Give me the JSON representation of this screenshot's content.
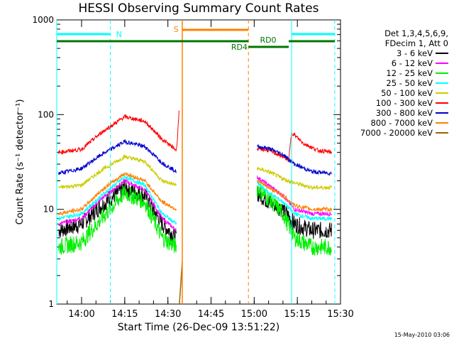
{
  "chart_data": {
    "type": "line",
    "title": "HESSI Observing Summary Count Rates",
    "xlabel": "Start Time (26-Dec-09 13:51:22)",
    "ylabel": "Count Rate (s⁻¹ detector⁻¹)",
    "yscale": "log",
    "ylim": [
      1,
      1000
    ],
    "xlim": [
      "13:51:22",
      "15:30"
    ],
    "x_ticks": [
      "14:00",
      "14:15",
      "14:30",
      "14:45",
      "15:00",
      "15:15",
      "15:30"
    ],
    "y_ticks": [
      "1",
      "10",
      "100",
      "1000"
    ],
    "legend_header": [
      "Det 1,3,4,5,6,9,",
      "FDecim 1, Att 0"
    ],
    "legend_position": "right, outside plot",
    "series": [
      {
        "name": "3 - 6 keV",
        "color": "#000000",
        "points": [
          [
            "13:52",
            6
          ],
          [
            "14:00",
            7
          ],
          [
            "14:07",
            11
          ],
          [
            "14:15",
            17
          ],
          [
            "14:22",
            14
          ],
          [
            "14:28",
            7
          ],
          [
            "14:33",
            5
          ],
          [
            "15:01",
            15
          ],
          [
            "15:05",
            12
          ],
          [
            "15:10",
            10
          ],
          [
            "15:14",
            7
          ],
          [
            "15:20",
            6
          ],
          [
            "15:27",
            6
          ]
        ]
      },
      {
        "name": "6 - 12 keV",
        "color": "#ff00ff",
        "points": [
          [
            "13:52",
            7
          ],
          [
            "14:00",
            8
          ],
          [
            "14:07",
            13
          ],
          [
            "14:15",
            20
          ],
          [
            "14:22",
            16
          ],
          [
            "14:28",
            8
          ],
          [
            "14:33",
            6
          ],
          [
            "15:01",
            22
          ],
          [
            "15:05",
            18
          ],
          [
            "15:10",
            14
          ],
          [
            "15:14",
            10
          ],
          [
            "15:20",
            9
          ],
          [
            "15:27",
            9
          ]
        ]
      },
      {
        "name": "12 - 25 keV",
        "color": "#00ee00",
        "points": [
          [
            "13:52",
            4
          ],
          [
            "14:00",
            4.5
          ],
          [
            "14:07",
            8
          ],
          [
            "14:15",
            15
          ],
          [
            "14:22",
            12
          ],
          [
            "14:28",
            5
          ],
          [
            "14:33",
            4
          ],
          [
            "15:01",
            17
          ],
          [
            "15:05",
            13
          ],
          [
            "15:10",
            9
          ],
          [
            "15:14",
            5
          ],
          [
            "15:20",
            4
          ],
          [
            "15:27",
            4
          ]
        ]
      },
      {
        "name": "25 - 50 keV",
        "color": "#00ffff",
        "points": [
          [
            "13:52",
            8
          ],
          [
            "14:00",
            9
          ],
          [
            "14:07",
            14
          ],
          [
            "14:15",
            22
          ],
          [
            "14:22",
            18
          ],
          [
            "14:28",
            9
          ],
          [
            "14:33",
            7
          ],
          [
            "15:01",
            19
          ],
          [
            "15:05",
            15
          ],
          [
            "15:10",
            12
          ],
          [
            "15:14",
            9
          ],
          [
            "15:20",
            8
          ],
          [
            "15:27",
            8
          ]
        ]
      },
      {
        "name": "50 - 100 keV",
        "color": "#cccc00",
        "points": [
          [
            "13:52",
            17
          ],
          [
            "14:00",
            18
          ],
          [
            "14:07",
            26
          ],
          [
            "14:15",
            36
          ],
          [
            "14:22",
            32
          ],
          [
            "14:28",
            20
          ],
          [
            "14:33",
            18
          ],
          [
            "15:01",
            27
          ],
          [
            "15:05",
            25
          ],
          [
            "15:10",
            21
          ],
          [
            "15:14",
            19
          ],
          [
            "15:20",
            17
          ],
          [
            "15:27",
            17
          ]
        ]
      },
      {
        "name": "100 - 300 keV",
        "color": "#ff0000",
        "points": [
          [
            "13:52",
            40
          ],
          [
            "14:00",
            43
          ],
          [
            "14:07",
            65
          ],
          [
            "14:15",
            95
          ],
          [
            "14:22",
            85
          ],
          [
            "14:28",
            55
          ],
          [
            "14:33",
            42
          ],
          [
            "14:34",
            120
          ],
          [
            "15:01",
            44
          ],
          [
            "15:05",
            42
          ],
          [
            "15:10",
            36
          ],
          [
            "15:12",
            33
          ],
          [
            "15:13",
            65
          ],
          [
            "15:17",
            50
          ],
          [
            "15:22",
            42
          ],
          [
            "15:27",
            40
          ]
        ]
      },
      {
        "name": "300 - 800 keV",
        "color": "#0000cc",
        "points": [
          [
            "13:52",
            24
          ],
          [
            "14:00",
            27
          ],
          [
            "14:07",
            38
          ],
          [
            "14:15",
            52
          ],
          [
            "14:22",
            46
          ],
          [
            "14:28",
            31
          ],
          [
            "14:33",
            25
          ],
          [
            "15:01",
            46
          ],
          [
            "15:05",
            44
          ],
          [
            "15:10",
            38
          ],
          [
            "15:14",
            30
          ],
          [
            "15:20",
            25
          ],
          [
            "15:27",
            24
          ]
        ]
      },
      {
        "name": "800 - 7000 keV",
        "color": "#ff8000",
        "points": [
          [
            "13:52",
            9
          ],
          [
            "14:00",
            10
          ],
          [
            "14:07",
            16
          ],
          [
            "14:15",
            24
          ],
          [
            "14:22",
            20
          ],
          [
            "14:28",
            12
          ],
          [
            "14:33",
            10
          ],
          [
            "15:01",
            20
          ],
          [
            "15:05",
            17
          ],
          [
            "15:10",
            14
          ],
          [
            "15:14",
            11
          ],
          [
            "15:20",
            10
          ],
          [
            "15:27",
            10
          ]
        ]
      },
      {
        "name": "7000 - 20000 keV",
        "color": "#996600",
        "points": [
          [
            "14:34",
            1.5
          ],
          [
            "14:35",
            2.8
          ]
        ]
      }
    ],
    "annotations": [
      {
        "text": "N",
        "color": "#00ffff"
      },
      {
        "text": "S",
        "color": "#ff8000"
      },
      {
        "text": "RD0",
        "color": "#007700"
      },
      {
        "text": "RD4",
        "color": "#007700"
      }
    ],
    "footer": "15-May-2010 03:06"
  }
}
